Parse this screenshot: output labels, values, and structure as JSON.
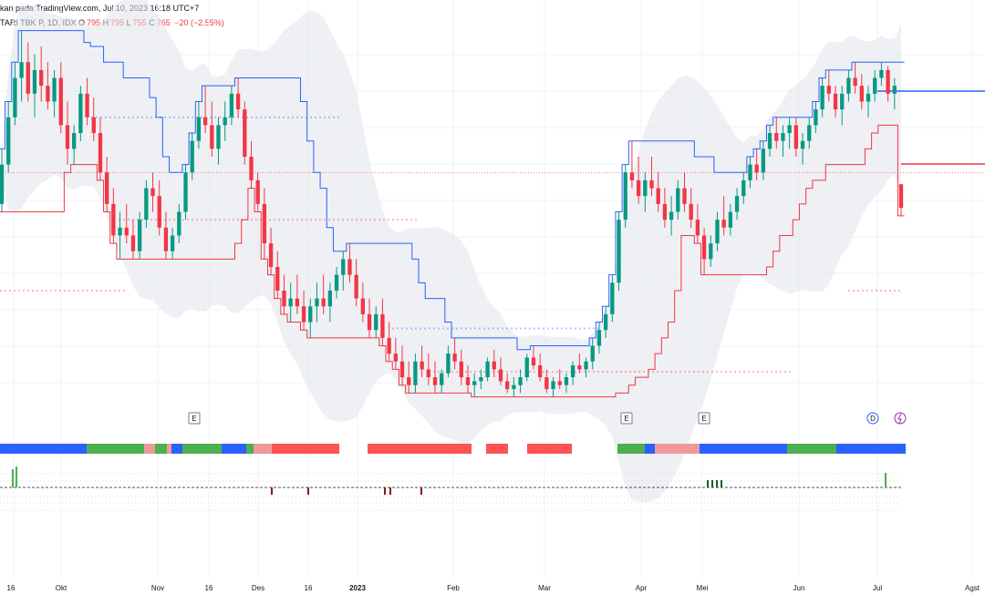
{
  "header": {
    "watermark": "kan pada TradingView.com, Jul 10, 2023 16:18 UTC+7",
    "symbol": "TARI TBK P, 1D, IDX",
    "o_label": "O",
    "o_val": "795",
    "h_label": "H",
    "h_val": "795",
    "l_label": "L",
    "l_val": "755",
    "c_label": "C",
    "c_val": "765",
    "change": "−20 (−2.55%)"
  },
  "colors": {
    "up": "#089981",
    "down": "#f23645",
    "upper_line": "#2962ff",
    "lower_line": "#f23645",
    "band": "#e0e3eb",
    "ribbon_blue": "#2962ff",
    "ribbon_green": "#4caf50",
    "ribbon_pink": "#ef9a9a",
    "ribbon_red": "#ff5252"
  },
  "chart_data": {
    "type": "candlestick",
    "series": [
      {
        "name": "candles",
        "values": [
          [
            770,
            840,
            760,
            820
          ],
          [
            820,
            900,
            810,
            880
          ],
          [
            880,
            950,
            870,
            930
          ],
          [
            930,
            990,
            900,
            950
          ],
          [
            950,
            975,
            900,
            910
          ],
          [
            910,
            960,
            880,
            940
          ],
          [
            940,
            970,
            900,
            920
          ],
          [
            920,
            950,
            890,
            900
          ],
          [
            900,
            940,
            880,
            930
          ],
          [
            930,
            950,
            860,
            870
          ],
          [
            870,
            900,
            820,
            840
          ],
          [
            840,
            870,
            820,
            860
          ],
          [
            860,
            920,
            850,
            910
          ],
          [
            910,
            930,
            870,
            880
          ],
          [
            880,
            905,
            850,
            860
          ],
          [
            860,
            880,
            800,
            810
          ],
          [
            810,
            830,
            760,
            770
          ],
          [
            770,
            790,
            720,
            730
          ],
          [
            730,
            760,
            700,
            740
          ],
          [
            740,
            770,
            720,
            730
          ],
          [
            730,
            750,
            700,
            710
          ],
          [
            710,
            760,
            700,
            750
          ],
          [
            750,
            800,
            740,
            790
          ],
          [
            790,
            810,
            760,
            780
          ],
          [
            780,
            800,
            730,
            740
          ],
          [
            740,
            760,
            700,
            710
          ],
          [
            710,
            740,
            700,
            730
          ],
          [
            730,
            770,
            720,
            760
          ],
          [
            760,
            820,
            750,
            810
          ],
          [
            810,
            860,
            800,
            850
          ],
          [
            850,
            900,
            840,
            880
          ],
          [
            880,
            920,
            860,
            870
          ],
          [
            870,
            900,
            830,
            840
          ],
          [
            840,
            880,
            820,
            870
          ],
          [
            870,
            900,
            850,
            880
          ],
          [
            880,
            920,
            870,
            910
          ],
          [
            910,
            930,
            880,
            890
          ],
          [
            890,
            900,
            820,
            830
          ],
          [
            830,
            850,
            790,
            800
          ],
          [
            800,
            810,
            760,
            770
          ],
          [
            770,
            790,
            700,
            720
          ],
          [
            720,
            740,
            680,
            690
          ],
          [
            690,
            710,
            650,
            660
          ],
          [
            660,
            680,
            630,
            640
          ],
          [
            640,
            670,
            620,
            650
          ],
          [
            650,
            680,
            630,
            640
          ],
          [
            640,
            660,
            610,
            620
          ],
          [
            620,
            650,
            600,
            640
          ],
          [
            640,
            670,
            620,
            650
          ],
          [
            650,
            680,
            630,
            640
          ],
          [
            640,
            670,
            620,
            660
          ],
          [
            660,
            690,
            650,
            680
          ],
          [
            680,
            710,
            660,
            700
          ],
          [
            700,
            720,
            670,
            680
          ],
          [
            680,
            700,
            640,
            650
          ],
          [
            650,
            670,
            620,
            630
          ],
          [
            630,
            650,
            600,
            610
          ],
          [
            610,
            640,
            600,
            630
          ],
          [
            630,
            650,
            590,
            600
          ],
          [
            600,
            620,
            570,
            580
          ],
          [
            580,
            600,
            560,
            570
          ],
          [
            570,
            590,
            540,
            550
          ],
          [
            550,
            570,
            530,
            540
          ],
          [
            540,
            580,
            530,
            570
          ],
          [
            570,
            590,
            550,
            560
          ],
          [
            560,
            580,
            540,
            550
          ],
          [
            550,
            570,
            530,
            540
          ],
          [
            540,
            560,
            530,
            555
          ],
          [
            555,
            590,
            550,
            580
          ],
          [
            580,
            600,
            560,
            570
          ],
          [
            570,
            585,
            540,
            550
          ],
          [
            550,
            565,
            530,
            540
          ],
          [
            540,
            555,
            525,
            545
          ],
          [
            545,
            560,
            535,
            550
          ],
          [
            550,
            575,
            545,
            570
          ],
          [
            570,
            585,
            550,
            560
          ],
          [
            560,
            575,
            540,
            545
          ],
          [
            545,
            555,
            530,
            535
          ],
          [
            535,
            550,
            525,
            540
          ],
          [
            540,
            560,
            530,
            550
          ],
          [
            550,
            580,
            545,
            575
          ],
          [
            575,
            590,
            560,
            565
          ],
          [
            565,
            580,
            545,
            550
          ],
          [
            550,
            560,
            530,
            535
          ],
          [
            535,
            550,
            525,
            545
          ],
          [
            545,
            560,
            535,
            540
          ],
          [
            540,
            555,
            530,
            550
          ],
          [
            550,
            570,
            540,
            565
          ],
          [
            565,
            580,
            555,
            560
          ],
          [
            560,
            575,
            550,
            570
          ],
          [
            570,
            600,
            560,
            590
          ],
          [
            590,
            620,
            580,
            610
          ],
          [
            610,
            640,
            600,
            630
          ],
          [
            630,
            680,
            620,
            670
          ],
          [
            670,
            760,
            660,
            750
          ],
          [
            750,
            820,
            740,
            810
          ],
          [
            810,
            850,
            790,
            800
          ],
          [
            800,
            830,
            770,
            780
          ],
          [
            780,
            810,
            760,
            800
          ],
          [
            800,
            830,
            780,
            790
          ],
          [
            790,
            810,
            760,
            770
          ],
          [
            770,
            790,
            740,
            750
          ],
          [
            750,
            780,
            730,
            760
          ],
          [
            760,
            800,
            750,
            790
          ],
          [
            790,
            810,
            760,
            770
          ],
          [
            770,
            790,
            740,
            750
          ],
          [
            750,
            770,
            720,
            730
          ],
          [
            730,
            740,
            680,
            700
          ],
          [
            700,
            730,
            690,
            720
          ],
          [
            720,
            760,
            710,
            750
          ],
          [
            750,
            780,
            730,
            740
          ],
          [
            740,
            770,
            730,
            760
          ],
          [
            760,
            790,
            750,
            780
          ],
          [
            780,
            810,
            770,
            800
          ],
          [
            800,
            830,
            790,
            820
          ],
          [
            820,
            840,
            800,
            810
          ],
          [
            810,
            850,
            800,
            840
          ],
          [
            840,
            870,
            830,
            860
          ],
          [
            860,
            880,
            840,
            850
          ],
          [
            850,
            870,
            830,
            860
          ],
          [
            860,
            880,
            840,
            870
          ],
          [
            870,
            880,
            830,
            840
          ],
          [
            840,
            860,
            820,
            850
          ],
          [
            850,
            880,
            840,
            870
          ],
          [
            870,
            900,
            860,
            890
          ],
          [
            890,
            930,
            880,
            920
          ],
          [
            920,
            940,
            900,
            910
          ],
          [
            910,
            920,
            880,
            890
          ],
          [
            890,
            920,
            870,
            910
          ],
          [
            910,
            940,
            900,
            930
          ],
          [
            930,
            950,
            910,
            920
          ],
          [
            920,
            935,
            890,
            900
          ],
          [
            900,
            920,
            880,
            910
          ],
          [
            910,
            940,
            900,
            930
          ],
          [
            930,
            950,
            920,
            940
          ],
          [
            940,
            945,
            900,
            910
          ],
          [
            910,
            930,
            890,
            920
          ],
          [
            795,
            795,
            755,
            765
          ]
        ]
      }
    ],
    "x_tick_labels": [
      "16",
      "Okt",
      "Nov",
      "16",
      "Des",
      "16",
      "2023",
      "Feb",
      "Mar",
      "Apr",
      "Mei",
      "Jun",
      "Jul",
      "Agst"
    ],
    "event_markers": [
      "E",
      "E",
      "E",
      "D"
    ]
  }
}
